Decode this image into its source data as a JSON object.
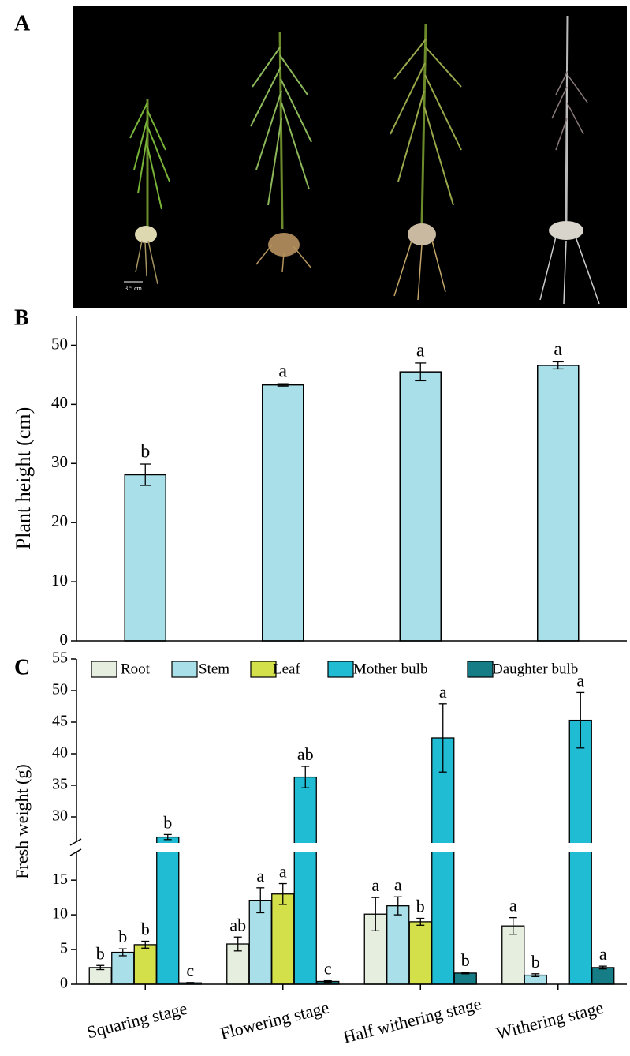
{
  "panel_a": {
    "label": "A",
    "scale_bar": "3.5 cm"
  },
  "chart_data": [
    {
      "type": "bar",
      "panel_label": "B",
      "y_label": "Plant height (cm)",
      "values": [
        28.1,
        43.3,
        45.5,
        46.6
      ],
      "errors": [
        1.8,
        0.2,
        1.5,
        0.6
      ],
      "letters": [
        "b",
        "a",
        "a",
        "a"
      ],
      "color": "#a8dfe8",
      "ylim": [
        0,
        55
      ],
      "yticks": [
        0,
        10,
        20,
        30,
        40,
        50
      ]
    },
    {
      "type": "grouped_bar",
      "panel_label": "C",
      "y_label": "Fresh weight (g)",
      "categories": [
        "Squaring stage",
        "Flowering stage",
        "Half withering stage",
        "Withering stage"
      ],
      "series": [
        {
          "name": "Root",
          "color": "#e6eedf",
          "values": [
            2.4,
            5.8,
            10.1,
            8.4
          ],
          "errors": [
            0.3,
            1.0,
            2.4,
            1.2
          ],
          "letters": [
            "b",
            "ab",
            "a",
            "a"
          ]
        },
        {
          "name": "Stem",
          "color": "#a8dfe8",
          "values": [
            4.6,
            12.1,
            11.3,
            1.3
          ],
          "errors": [
            0.5,
            1.8,
            1.3,
            0.2
          ],
          "letters": [
            "b",
            "a",
            "a",
            "b"
          ]
        },
        {
          "name": "Leaf",
          "color": "#d4e04a",
          "values": [
            5.7,
            13.0,
            9.0,
            null
          ],
          "errors": [
            0.5,
            1.5,
            0.5,
            null
          ],
          "letters": [
            "b",
            "a",
            "b",
            null
          ]
        },
        {
          "name": "Mother bulb",
          "color": "#1fbcd4",
          "values": [
            26.8,
            36.3,
            42.5,
            45.3
          ],
          "errors": [
            0.4,
            1.7,
            5.4,
            4.4
          ],
          "letters": [
            "b",
            "ab",
            "a",
            "a"
          ]
        },
        {
          "name": "Daughter bulb",
          "color": "#167c85",
          "values": [
            0.2,
            0.4,
            1.6,
            2.4
          ],
          "errors": [
            0.05,
            0.1,
            0.1,
            0.2
          ],
          "letters": [
            "c",
            "c",
            "b",
            "a"
          ]
        }
      ],
      "ylim": [
        0,
        19
      ],
      "yticks": [
        0,
        5,
        10,
        15
      ],
      "ylim_upper": [
        26,
        55
      ],
      "yticks_upper": [
        30,
        35,
        40,
        45,
        50,
        55
      ],
      "axis_break": true
    }
  ]
}
